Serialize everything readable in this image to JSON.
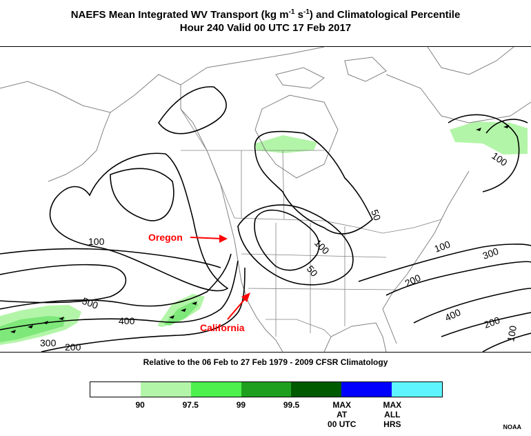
{
  "title": {
    "line1_prefix": "NAEFS Mean Integrated WV Transport (kg m",
    "line1_sup1": "-1",
    "line1_mid": " s",
    "line1_sup2": "-1",
    "line1_suffix": ") and Climatological Percentile",
    "line2": "Hour 240 Valid 00 UTC 17 Feb 2017"
  },
  "annotations": {
    "oregon": "Oregon",
    "california": "California"
  },
  "contour_labels": [
    "100",
    "50",
    "100",
    "50",
    "100",
    "300",
    "200",
    "400",
    "200",
    "100",
    "100",
    "500",
    "400",
    "300",
    "200"
  ],
  "subtitle": "Relative to the 06 Feb to 27 Feb 1979 - 2009 CFSR Climatology",
  "legend": {
    "colors": [
      "#ffffff",
      "#b3f5a8",
      "#4ef04e",
      "#1ea01e",
      "#005a00",
      "#0000ff",
      "#5ff5ff"
    ],
    "ticks": [
      "90",
      "97.5",
      "99",
      "99.5",
      "MAX\nAT\n00 UTC",
      "MAX\nALL\nHRS"
    ]
  },
  "credit": "NOAA",
  "colors": {
    "contour": "#000000",
    "boundary": "#808080",
    "annotation": "#ff0000",
    "shade_light": "#b3f5a8",
    "shade_green": "#4ef04e"
  }
}
